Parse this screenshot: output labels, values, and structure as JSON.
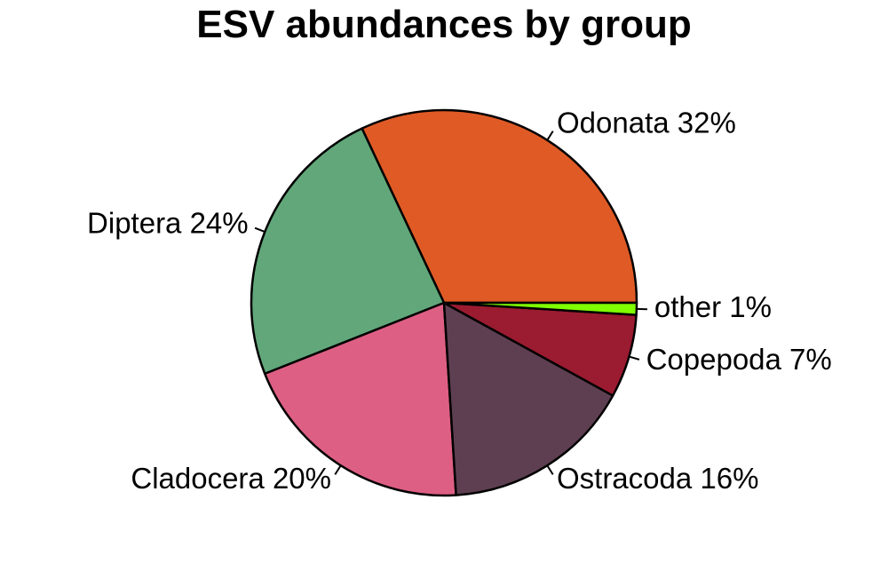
{
  "chart_data": {
    "type": "pie",
    "title": "ESV abundances by group",
    "start_angle_deg": 0,
    "direction": "counterclockwise",
    "slices": [
      {
        "label": "Odonata 32%",
        "name": "Odonata",
        "value": 32,
        "color": "#E05A25"
      },
      {
        "label": "Diptera 24%",
        "name": "Diptera",
        "value": 24,
        "color": "#61A77A"
      },
      {
        "label": "Cladocera 20%",
        "name": "Cladocera",
        "value": 20,
        "color": "#DE5F84"
      },
      {
        "label": "Ostracoda 16%",
        "name": "Ostracoda",
        "value": 16,
        "color": "#5E3F51"
      },
      {
        "label": "Copepoda 7%",
        "name": "Copepoda",
        "value": 7,
        "color": "#9B1B30"
      },
      {
        "label": "other 1%",
        "name": "other",
        "value": 1,
        "color": "#7FFF00"
      }
    ]
  }
}
